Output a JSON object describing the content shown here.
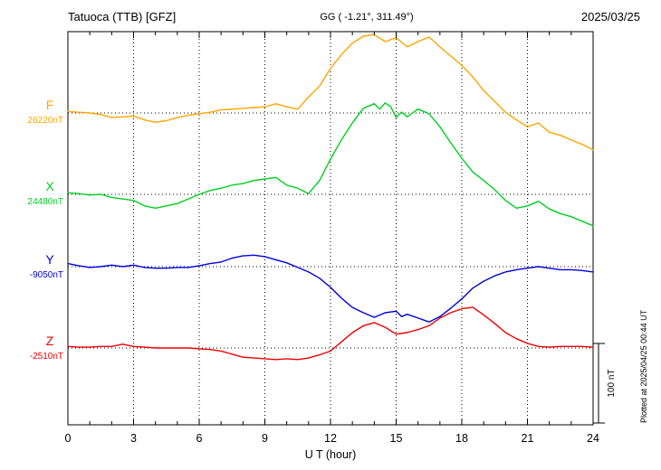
{
  "header": {
    "station": "Tatuoca (TTB)  [GFZ]",
    "coords": "GG ( -1.21°, 311.49°)",
    "date": "2025/03/25"
  },
  "chart_data": {
    "type": "line",
    "title": "Tatuoca (TTB)  [GFZ]",
    "subtitle": "GG ( -1.21°, 311.49°)",
    "date": "2025/03/25",
    "xlabel": "U T (hour)",
    "xlim": [
      0,
      24
    ],
    "x_ticks": [
      0,
      3,
      6,
      9,
      12,
      15,
      18,
      21,
      24
    ],
    "scale_bar": "100 nT",
    "plotted_at": "Plotted at 2025/04/25 00:44 UT",
    "series": [
      {
        "name": "F",
        "label_value": "26220nT",
        "base": 26220,
        "color": "#ffa500",
        "points": [
          [
            0,
            26222
          ],
          [
            0.5,
            26221
          ],
          [
            1,
            26220
          ],
          [
            1.5,
            26218
          ],
          [
            2,
            26214
          ],
          [
            2.5,
            26215
          ],
          [
            3,
            26216
          ],
          [
            3.5,
            26211
          ],
          [
            4,
            26208
          ],
          [
            4.5,
            26210
          ],
          [
            5,
            26214
          ],
          [
            5.5,
            26217
          ],
          [
            6,
            26219
          ],
          [
            6.5,
            26221
          ],
          [
            7,
            26224
          ],
          [
            7.5,
            26225
          ],
          [
            8,
            26226
          ],
          [
            8.5,
            26227
          ],
          [
            9,
            26228
          ],
          [
            9.5,
            26232
          ],
          [
            10,
            26228
          ],
          [
            10.5,
            26225
          ],
          [
            11,
            26241
          ],
          [
            11.5,
            26255
          ],
          [
            12,
            26278
          ],
          [
            12.5,
            26296
          ],
          [
            13,
            26311
          ],
          [
            13.5,
            26320
          ],
          [
            14,
            26322
          ],
          [
            14.5,
            26313
          ],
          [
            15,
            26318
          ],
          [
            15.5,
            26306
          ],
          [
            16,
            26313
          ],
          [
            16.5,
            26319
          ],
          [
            17,
            26306
          ],
          [
            17.5,
            26294
          ],
          [
            18,
            26282
          ],
          [
            18.5,
            26267
          ],
          [
            19,
            26249
          ],
          [
            19.5,
            26235
          ],
          [
            20,
            26221
          ],
          [
            20.5,
            26211
          ],
          [
            21,
            26202
          ],
          [
            21.5,
            26207
          ],
          [
            22,
            26195
          ],
          [
            22.5,
            26191
          ],
          [
            23,
            26185
          ],
          [
            23.5,
            26179
          ],
          [
            24,
            26172
          ]
        ]
      },
      {
        "name": "X",
        "label_value": "24480nT",
        "base": 24480,
        "color": "#00d020",
        "points": [
          [
            0,
            24482
          ],
          [
            0.5,
            24481
          ],
          [
            1,
            24479
          ],
          [
            1.5,
            24480
          ],
          [
            2,
            24476
          ],
          [
            2.5,
            24474
          ],
          [
            3,
            24472
          ],
          [
            3.5,
            24465
          ],
          [
            4,
            24462
          ],
          [
            4.5,
            24465
          ],
          [
            5,
            24468
          ],
          [
            5.5,
            24474
          ],
          [
            6,
            24480
          ],
          [
            6.5,
            24485
          ],
          [
            7,
            24488
          ],
          [
            7.5,
            24492
          ],
          [
            8,
            24494
          ],
          [
            8.5,
            24498
          ],
          [
            9,
            24500
          ],
          [
            9.5,
            24502
          ],
          [
            10,
            24492
          ],
          [
            10.5,
            24488
          ],
          [
            11,
            24481
          ],
          [
            11.5,
            24498
          ],
          [
            12,
            24526
          ],
          [
            12.5,
            24551
          ],
          [
            13,
            24573
          ],
          [
            13.5,
            24592
          ],
          [
            14,
            24598
          ],
          [
            14.25,
            24591
          ],
          [
            14.5,
            24599
          ],
          [
            14.75,
            24594
          ],
          [
            15,
            24580
          ],
          [
            15.25,
            24587
          ],
          [
            15.5,
            24581
          ],
          [
            16,
            24591
          ],
          [
            16.5,
            24585
          ],
          [
            17,
            24568
          ],
          [
            17.5,
            24547
          ],
          [
            18,
            24527
          ],
          [
            18.5,
            24509
          ],
          [
            19,
            24498
          ],
          [
            19.5,
            24486
          ],
          [
            20,
            24472
          ],
          [
            20.5,
            24462
          ],
          [
            21,
            24465
          ],
          [
            21.5,
            24471
          ],
          [
            22,
            24461
          ],
          [
            22.5,
            24455
          ],
          [
            23,
            24451
          ],
          [
            23.5,
            24445
          ],
          [
            24,
            24439
          ]
        ]
      },
      {
        "name": "Y",
        "label_value": "-9050nT",
        "base": -9050,
        "color": "#0000dd",
        "points": [
          [
            0,
            -9046
          ],
          [
            0.5,
            -9049
          ],
          [
            1,
            -9051
          ],
          [
            1.5,
            -9050
          ],
          [
            2,
            -9048
          ],
          [
            2.5,
            -9050
          ],
          [
            3,
            -9048
          ],
          [
            3.5,
            -9051
          ],
          [
            4,
            -9052
          ],
          [
            4.5,
            -9052
          ],
          [
            5,
            -9051
          ],
          [
            5.5,
            -9051
          ],
          [
            6,
            -9049
          ],
          [
            6.5,
            -9046
          ],
          [
            7,
            -9044
          ],
          [
            7.5,
            -9039
          ],
          [
            8,
            -9036
          ],
          [
            8.5,
            -9035
          ],
          [
            9,
            -9037
          ],
          [
            9.5,
            -9041
          ],
          [
            10,
            -9045
          ],
          [
            10.5,
            -9051
          ],
          [
            11,
            -9057
          ],
          [
            11.5,
            -9065
          ],
          [
            12,
            -9077
          ],
          [
            12.5,
            -9091
          ],
          [
            13,
            -9103
          ],
          [
            13.5,
            -9110
          ],
          [
            14,
            -9116
          ],
          [
            14.5,
            -9110
          ],
          [
            15,
            -9108
          ],
          [
            15.25,
            -9115
          ],
          [
            15.5,
            -9112
          ],
          [
            16,
            -9117
          ],
          [
            16.5,
            -9122
          ],
          [
            17,
            -9115
          ],
          [
            17.5,
            -9104
          ],
          [
            18,
            -9092
          ],
          [
            18.5,
            -9078
          ],
          [
            19,
            -9069
          ],
          [
            19.5,
            -9062
          ],
          [
            20,
            -9057
          ],
          [
            20.5,
            -9054
          ],
          [
            21,
            -9052
          ],
          [
            21.5,
            -9050
          ],
          [
            22,
            -9052
          ],
          [
            22.5,
            -9054
          ],
          [
            23,
            -9054
          ],
          [
            23.5,
            -9055
          ],
          [
            24,
            -9057
          ]
        ]
      },
      {
        "name": "Z",
        "label_value": "-2510nT",
        "base": -2510,
        "color": "#ee0000",
        "points": [
          [
            0,
            -2508
          ],
          [
            0.5,
            -2509
          ],
          [
            1,
            -2509
          ],
          [
            1.5,
            -2508
          ],
          [
            2,
            -2508
          ],
          [
            2.5,
            -2505
          ],
          [
            3,
            -2508
          ],
          [
            3.5,
            -2509
          ],
          [
            4,
            -2510
          ],
          [
            4.5,
            -2510
          ],
          [
            5,
            -2510
          ],
          [
            5.5,
            -2510
          ],
          [
            6,
            -2511
          ],
          [
            6.5,
            -2512
          ],
          [
            7,
            -2514
          ],
          [
            7.5,
            -2518
          ],
          [
            8,
            -2522
          ],
          [
            8.5,
            -2523
          ],
          [
            9,
            -2524
          ],
          [
            9.5,
            -2525
          ],
          [
            10,
            -2524
          ],
          [
            10.5,
            -2525
          ],
          [
            11,
            -2523
          ],
          [
            11.5,
            -2519
          ],
          [
            12,
            -2514
          ],
          [
            12.5,
            -2502
          ],
          [
            13,
            -2490
          ],
          [
            13.5,
            -2481
          ],
          [
            14,
            -2477
          ],
          [
            14.5,
            -2483
          ],
          [
            15,
            -2492
          ],
          [
            15.5,
            -2490
          ],
          [
            16,
            -2486
          ],
          [
            16.5,
            -2481
          ],
          [
            17,
            -2471
          ],
          [
            17.5,
            -2464
          ],
          [
            18,
            -2459
          ],
          [
            18.5,
            -2457
          ],
          [
            19,
            -2467
          ],
          [
            19.5,
            -2478
          ],
          [
            20,
            -2490
          ],
          [
            20.5,
            -2498
          ],
          [
            21,
            -2504
          ],
          [
            21.5,
            -2508
          ],
          [
            22,
            -2509
          ],
          [
            22.5,
            -2508
          ],
          [
            23,
            -2508
          ],
          [
            23.5,
            -2508
          ],
          [
            24,
            -2509
          ]
        ]
      }
    ]
  }
}
